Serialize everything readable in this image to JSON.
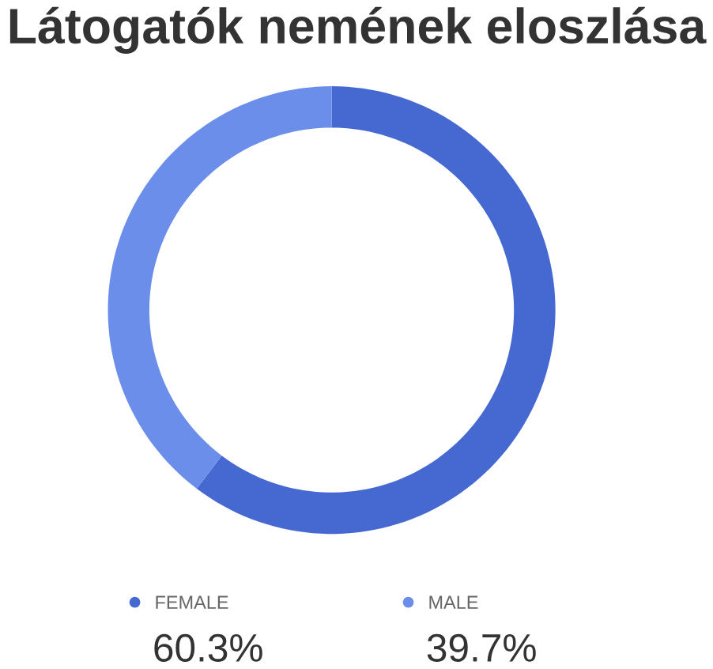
{
  "chart_data": {
    "type": "donut",
    "title": "Látogatók nemének eloszlása",
    "categories": [
      "FEMALE",
      "MALE"
    ],
    "values": [
      60.3,
      39.7
    ],
    "value_labels": [
      "60.3%",
      "39.7%"
    ],
    "colors": [
      "#4568d1",
      "#6a8ee9"
    ],
    "legend": "bottom"
  }
}
